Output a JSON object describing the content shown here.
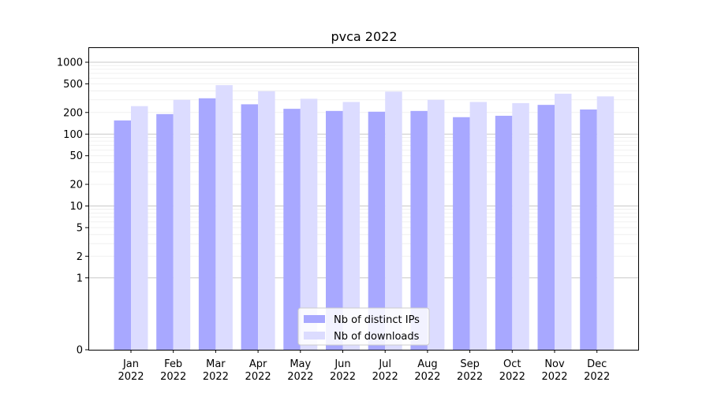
{
  "chart_data": {
    "type": "bar",
    "title": "pvca 2022",
    "xlabel": "",
    "ylabel": "",
    "y_scale": "symlog",
    "y_ticks": [
      0,
      1,
      2,
      5,
      10,
      20,
      50,
      100,
      200,
      500,
      1000
    ],
    "y_tick_labels": [
      "0",
      "1",
      "2",
      "5",
      "10",
      "20",
      "50",
      "100",
      "200",
      "500",
      "1000"
    ],
    "ylim": [
      0,
      1400
    ],
    "grid": true,
    "legend_position": "lower center",
    "categories": [
      [
        "Jan",
        "2022"
      ],
      [
        "Feb",
        "2022"
      ],
      [
        "Mar",
        "2022"
      ],
      [
        "Apr",
        "2022"
      ],
      [
        "May",
        "2022"
      ],
      [
        "Jun",
        "2022"
      ],
      [
        "Jul",
        "2022"
      ],
      [
        "Aug",
        "2022"
      ],
      [
        "Sep",
        "2022"
      ],
      [
        "Oct",
        "2022"
      ],
      [
        "Nov",
        "2022"
      ],
      [
        "Dec",
        "2022"
      ]
    ],
    "series": [
      {
        "name": "Nb of distinct IPs",
        "color": "#a8a8ff",
        "values": [
          155,
          190,
          315,
          260,
          225,
          210,
          205,
          210,
          172,
          180,
          255,
          220
        ]
      },
      {
        "name": "Nb of downloads",
        "color": "#dcdcff",
        "values": [
          245,
          300,
          480,
          395,
          310,
          280,
          390,
          300,
          280,
          270,
          365,
          335
        ]
      }
    ]
  }
}
